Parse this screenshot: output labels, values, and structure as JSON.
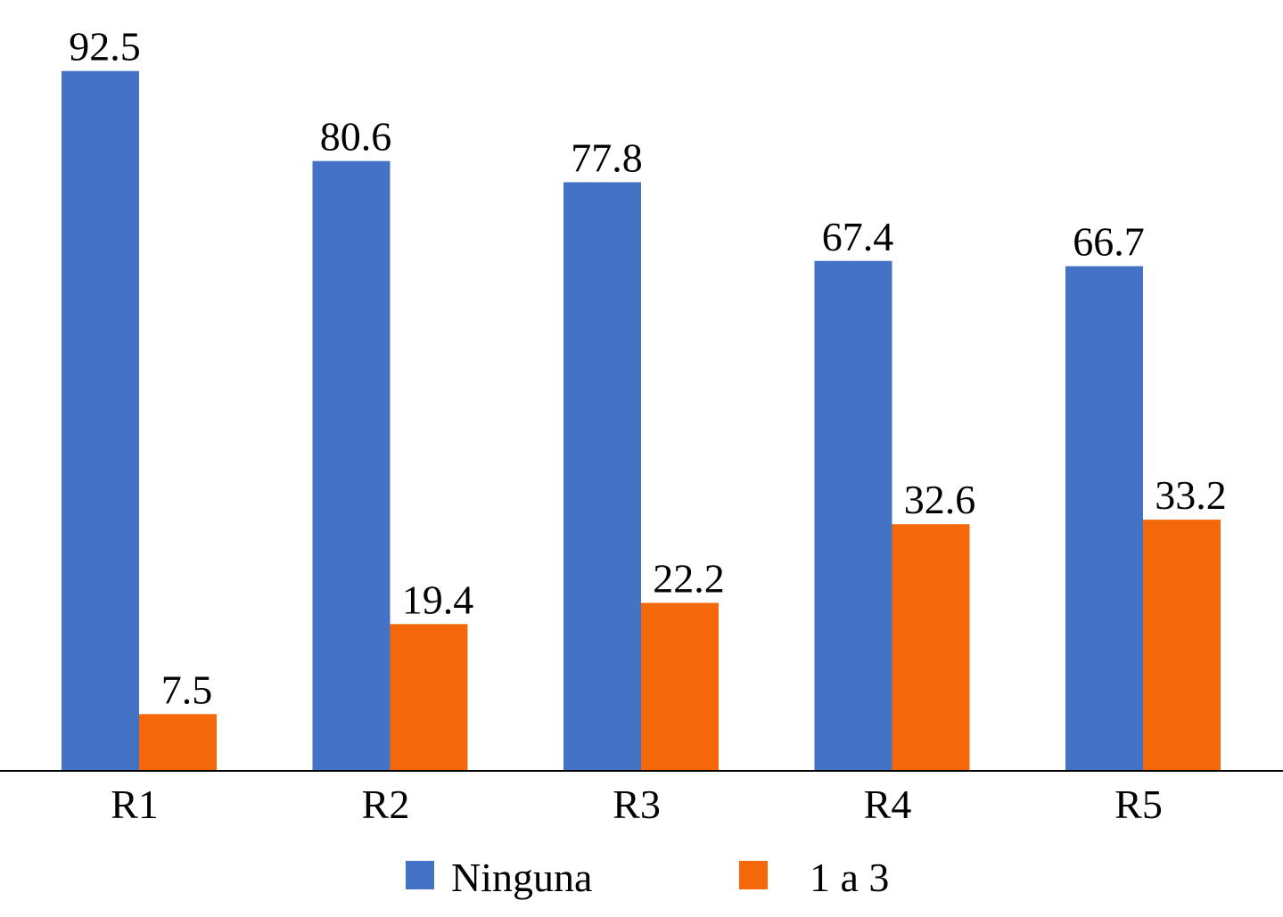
{
  "chart_data": {
    "type": "bar",
    "title": "",
    "xlabel": "",
    "ylabel": "",
    "categories": [
      "R1",
      "R2",
      "R3",
      "R4",
      "R5"
    ],
    "series": [
      {
        "name": "Ninguna",
        "color": "#4472C4",
        "values": [
          92.5,
          80.6,
          77.8,
          67.4,
          66.7
        ],
        "labels": [
          "92.5",
          "80.6",
          "77.8",
          "67.4",
          "66.7"
        ]
      },
      {
        "name": "1 a 3",
        "color": "#F4680B",
        "values": [
          7.5,
          19.4,
          22.2,
          32.6,
          33.2
        ],
        "labels": [
          "7.5",
          "19.4",
          "22.2",
          "32.6",
          "33.2"
        ]
      }
    ],
    "ylim": [
      0,
      100
    ],
    "grid": false,
    "legend": "bottom-center"
  }
}
